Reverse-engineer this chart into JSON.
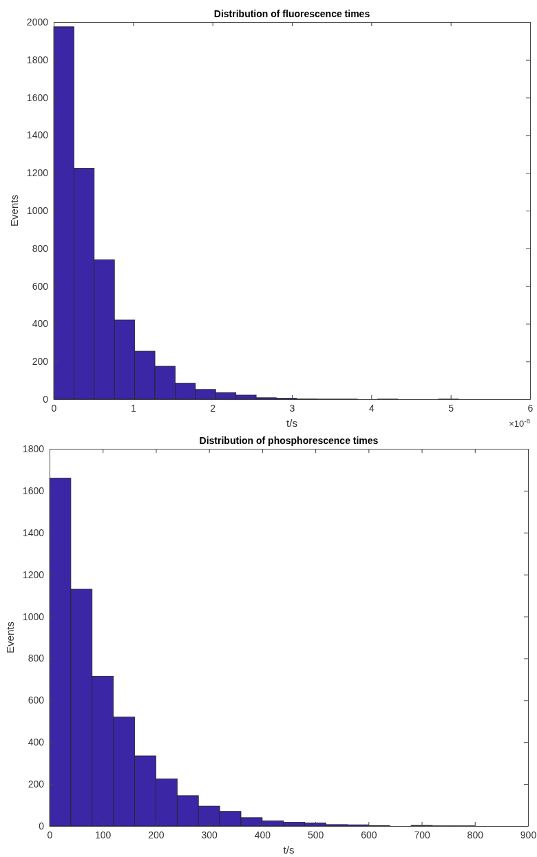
{
  "chart_data": [
    {
      "type": "histogram",
      "title": "Distribution of fluorescence times",
      "xlabel": "t/s",
      "ylabel": "Events",
      "color": "#3b27a6",
      "bins": [
        0,
        0.255,
        0.51,
        0.765,
        1.02,
        1.275,
        1.53,
        1.785,
        2.04,
        2.295,
        2.55,
        2.805,
        3.06,
        3.315,
        3.57,
        3.825,
        4.08,
        4.335,
        4.59,
        4.845,
        5.1
      ],
      "values": [
        1975,
        1225,
        740,
        420,
        255,
        175,
        85,
        52,
        35,
        22,
        8,
        5,
        2,
        1,
        1,
        0,
        1,
        0,
        0,
        1
      ],
      "xlim": [
        0,
        6
      ],
      "xticks": [
        0,
        1,
        2,
        3,
        4,
        5,
        6
      ],
      "ylim": [
        0,
        2000
      ],
      "yticks": [
        0,
        200,
        400,
        600,
        800,
        1000,
        1200,
        1400,
        1600,
        1800,
        2000
      ],
      "annotations": [
        "×10$^{-8}$"
      ]
    },
    {
      "type": "histogram",
      "title": "Distribution of phosphorescence times",
      "xlabel": "t/s",
      "ylabel": "Events",
      "color": "#3b27a6",
      "bins": [
        0,
        40,
        80,
        120,
        160,
        200,
        240,
        280,
        320,
        360,
        400,
        440,
        480,
        520,
        560,
        600,
        640,
        680,
        720,
        760,
        800
      ],
      "values": [
        1660,
        1130,
        715,
        520,
        335,
        225,
        145,
        95,
        70,
        40,
        25,
        18,
        15,
        7,
        6,
        2,
        0,
        3,
        1,
        1
      ],
      "xlim": [
        0,
        900
      ],
      "xticks": [
        0,
        100,
        200,
        300,
        400,
        500,
        600,
        700,
        800,
        900
      ],
      "ylim": [
        0,
        1800
      ],
      "yticks": [
        0,
        200,
        400,
        600,
        800,
        1000,
        1200,
        1400,
        1600,
        1800
      ]
    }
  ]
}
